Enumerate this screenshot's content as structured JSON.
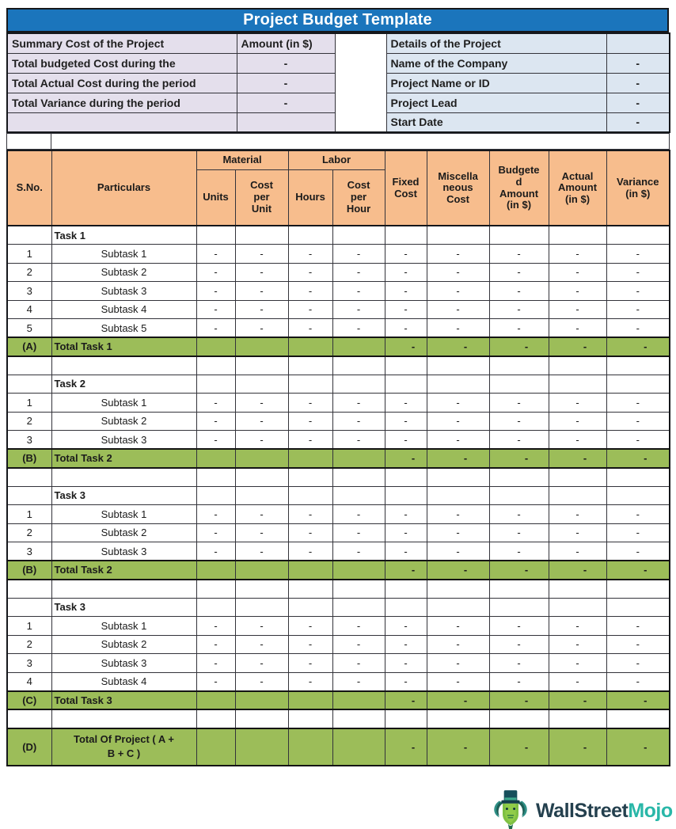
{
  "title": "Project Budget Template",
  "summary": {
    "header": {
      "label": "Summary Cost of the Project",
      "amount": "Amount (in $)"
    },
    "rows": [
      {
        "label": "Total budgeted Cost during the",
        "value": "-"
      },
      {
        "label": "Total Actual Cost during the period",
        "value": "-"
      },
      {
        "label": "Total Variance during the period",
        "value": "-"
      },
      {
        "label": "",
        "value": ""
      }
    ]
  },
  "details": {
    "header": "Details of the Project",
    "rows": [
      {
        "label": "Name of the Company",
        "value": "-"
      },
      {
        "label": "Project Name or ID",
        "value": "-"
      },
      {
        "label": "Project Lead",
        "value": "-"
      },
      {
        "label": "Start Date",
        "value": "-"
      }
    ]
  },
  "table": {
    "header": {
      "sno": "S.No.",
      "particulars": "Particulars",
      "material": "Material",
      "labor": "Labor",
      "units": "Units",
      "cost_per_unit": "Cost\nper\nUnit",
      "hours": "Hours",
      "cost_per_hour": "Cost\nper\nHour",
      "fixed_cost": "Fixed\nCost",
      "misc_cost": "Miscella\nneous\nCost",
      "budgeted": "Budgete\nd\nAmount\n(in $)",
      "actual": "Actual\nAmount\n(in $)",
      "variance": "Variance\n(in $)"
    },
    "rows": [
      {
        "type": "task",
        "label": "Task 1"
      },
      {
        "type": "sub",
        "sno": "1",
        "label": "Subtask 1",
        "dash": "-"
      },
      {
        "type": "sub",
        "sno": "2",
        "label": "Subtask 2",
        "dash": "-"
      },
      {
        "type": "sub",
        "sno": "3",
        "label": "Subtask 3",
        "dash": "-"
      },
      {
        "type": "sub",
        "sno": "4",
        "label": "Subtask 4",
        "dash": "-"
      },
      {
        "type": "sub",
        "sno": "5",
        "label": "Subtask 5",
        "dash": "-"
      },
      {
        "type": "total",
        "sno": "(A)",
        "label": "Total Task 1",
        "dash": "-"
      },
      {
        "type": "empty"
      },
      {
        "type": "task",
        "label": "Task 2"
      },
      {
        "type": "sub",
        "sno": "1",
        "label": "Subtask 1",
        "dash": "-"
      },
      {
        "type": "sub",
        "sno": "2",
        "label": "Subtask 2",
        "dash": "-"
      },
      {
        "type": "sub",
        "sno": "3",
        "label": "Subtask 3",
        "dash": "-"
      },
      {
        "type": "total",
        "sno": "(B)",
        "label": "Total Task 2",
        "dash": "-"
      },
      {
        "type": "empty"
      },
      {
        "type": "task",
        "label": "Task 3"
      },
      {
        "type": "sub",
        "sno": "1",
        "label": "Subtask 1",
        "dash": "-"
      },
      {
        "type": "sub",
        "sno": "2",
        "label": "Subtask 2",
        "dash": "-"
      },
      {
        "type": "sub",
        "sno": "3",
        "label": "Subtask 3",
        "dash": "-"
      },
      {
        "type": "total",
        "sno": "(B)",
        "label": "Total Task 2",
        "dash": "-"
      },
      {
        "type": "empty"
      },
      {
        "type": "task",
        "label": "Task 3"
      },
      {
        "type": "sub",
        "sno": "1",
        "label": "Subtask 1",
        "dash": "-"
      },
      {
        "type": "sub",
        "sno": "2",
        "label": "Subtask 2",
        "dash": "-"
      },
      {
        "type": "sub",
        "sno": "3",
        "label": "Subtask 3",
        "dash": "-"
      },
      {
        "type": "sub",
        "sno": "4",
        "label": "Subtask 4",
        "dash": "-"
      },
      {
        "type": "total",
        "sno": "(C)",
        "label": "Total Task 3",
        "dash": "-"
      },
      {
        "type": "empty"
      },
      {
        "type": "grand",
        "sno": "(D)",
        "label": "Total Of Project ( A +\nB + C )",
        "dash": "-"
      }
    ]
  },
  "logo": {
    "brand_dark": "WallStreet",
    "brand_accent": "Mojo"
  },
  "colors": {
    "title_bar": "#1B75BC",
    "summary_bg": "#E4DFEC",
    "details_bg": "#DCE6F1",
    "table_header_bg": "#F7BD8D",
    "total_row_bg": "#9CBD59",
    "brand_dark": "#24404E",
    "brand_teal": "#29B7A8"
  }
}
